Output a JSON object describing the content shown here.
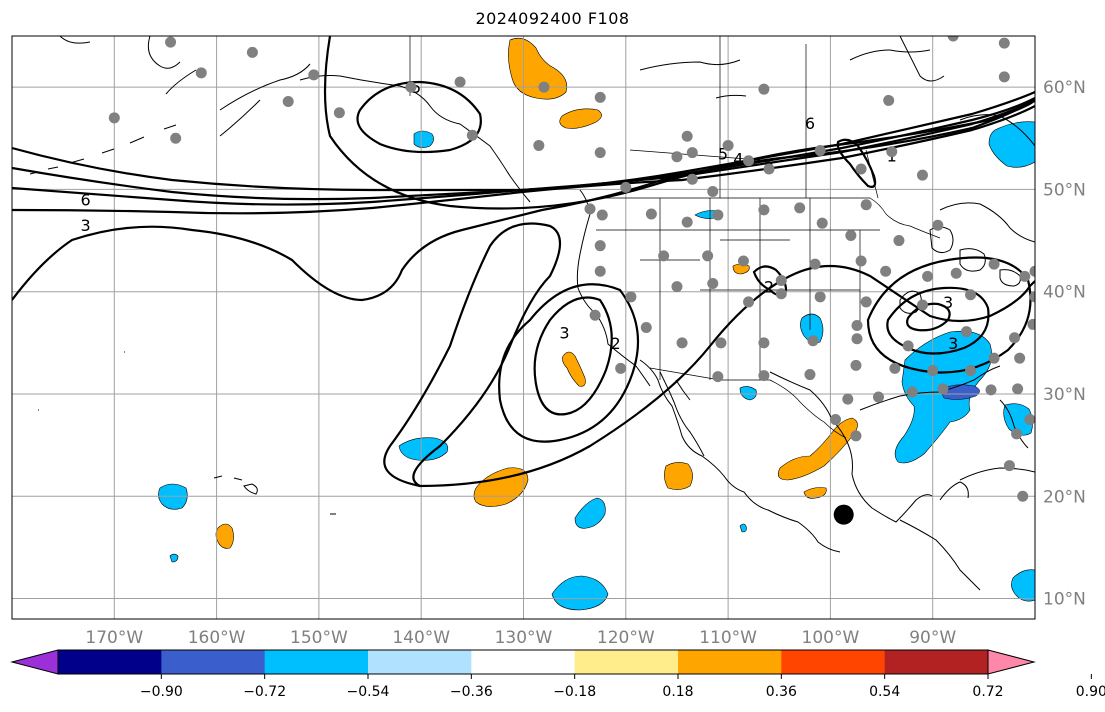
{
  "title": "2024092400 F108",
  "map": {
    "lon_range": [
      -180,
      -80
    ],
    "lat_range": [
      8,
      65
    ],
    "lon_ticks": [
      {
        "value": -170,
        "label": "170°W"
      },
      {
        "value": -160,
        "label": "160°W"
      },
      {
        "value": -150,
        "label": "150°W"
      },
      {
        "value": -140,
        "label": "140°W"
      },
      {
        "value": -130,
        "label": "130°W"
      },
      {
        "value": -120,
        "label": "120°W"
      },
      {
        "value": -110,
        "label": "110°W"
      },
      {
        "value": -100,
        "label": "100°W"
      },
      {
        "value": -90,
        "label": "90°W"
      }
    ],
    "lat_ticks": [
      {
        "value": 10,
        "label": "10°N"
      },
      {
        "value": 20,
        "label": "20°N"
      },
      {
        "value": 30,
        "label": "30°N"
      },
      {
        "value": 40,
        "label": "40°N"
      },
      {
        "value": 50,
        "label": "50°N"
      },
      {
        "value": 60,
        "label": "60°N"
      }
    ],
    "grid": true
  },
  "colorbar": {
    "ticks": [
      "−0.90",
      "−0.72",
      "−0.54",
      "−0.36",
      "−0.18",
      "0.18",
      "0.36",
      "0.54",
      "0.72",
      "0.90"
    ],
    "colors": [
      "#9b30d9",
      "#00008b",
      "#3a5fcd",
      "#00bfff",
      "#b0e2ff",
      "#ffffff",
      "#ffec8b",
      "#ffa500",
      "#ff4500",
      "#b22222",
      "#ff88aa"
    ],
    "extend": "both"
  },
  "contour_labels": [
    {
      "text": "5",
      "lon": -140.5,
      "lat": 60.0
    },
    {
      "text": "6",
      "lon": -102.0,
      "lat": 56.5
    },
    {
      "text": "5",
      "lon": -110.5,
      "lat": 53.5
    },
    {
      "text": "4",
      "lon": -109.0,
      "lat": 53.0
    },
    {
      "text": "2",
      "lon": -106.0,
      "lat": 52.2
    },
    {
      "text": "1",
      "lon": -94.0,
      "lat": 53.3
    },
    {
      "text": "6",
      "lon": -172.8,
      "lat": 49.0
    },
    {
      "text": "3",
      "lon": -172.8,
      "lat": 46.5
    },
    {
      "text": "3",
      "lon": -126.0,
      "lat": 36.0
    },
    {
      "text": "2",
      "lon": -121.0,
      "lat": 35.0
    },
    {
      "text": "2",
      "lon": -106.0,
      "lat": 40.5
    },
    {
      "text": "3",
      "lon": -88.5,
      "lat": 39.0
    },
    {
      "text": "3",
      "lon": -88.0,
      "lat": 35.0
    }
  ],
  "station_points": [
    [
      -164.5,
      64.4
    ],
    [
      -156.5,
      63.4
    ],
    [
      -161.5,
      61.4
    ],
    [
      -150.5,
      61.2
    ],
    [
      -141.0,
      60.0
    ],
    [
      -136.2,
      60.5
    ],
    [
      -128.0,
      60.0
    ],
    [
      -122.5,
      59.0
    ],
    [
      -153.0,
      58.6
    ],
    [
      -170.0,
      57.0
    ],
    [
      -164.0,
      55.0
    ],
    [
      -148.0,
      57.5
    ],
    [
      -135.0,
      55.3
    ],
    [
      -128.5,
      54.3
    ],
    [
      -122.5,
      53.6
    ],
    [
      -114.0,
      55.2
    ],
    [
      -113.5,
      53.6
    ],
    [
      -110.0,
      54.3
    ],
    [
      -108.0,
      52.8
    ],
    [
      -106.0,
      52.0
    ],
    [
      -101.0,
      53.8
    ],
    [
      -97.0,
      52.0
    ],
    [
      -94.0,
      53.7
    ],
    [
      -91.0,
      51.4
    ],
    [
      -106.5,
      59.8
    ],
    [
      -94.3,
      58.7
    ],
    [
      -88.0,
      65.0
    ],
    [
      -83.0,
      64.3
    ],
    [
      -83.0,
      61.0
    ],
    [
      -111.5,
      49.8
    ],
    [
      -113.5,
      51.0
    ],
    [
      -115.0,
      53.2
    ],
    [
      -120.0,
      50.2
    ],
    [
      -123.5,
      48.1
    ],
    [
      -122.3,
      47.5
    ],
    [
      -117.5,
      47.6
    ],
    [
      -114.0,
      46.8
    ],
    [
      -111.0,
      47.5
    ],
    [
      -106.5,
      48.0
    ],
    [
      -103.0,
      48.2
    ],
    [
      -100.8,
      46.7
    ],
    [
      -98.0,
      45.5
    ],
    [
      -96.5,
      48.5
    ],
    [
      -93.3,
      45.0
    ],
    [
      -89.5,
      46.5
    ],
    [
      -122.5,
      44.5
    ],
    [
      -122.5,
      42.0
    ],
    [
      -116.3,
      43.5
    ],
    [
      -112.0,
      43.5
    ],
    [
      -108.5,
      43.0
    ],
    [
      -104.8,
      41.1
    ],
    [
      -101.5,
      42.7
    ],
    [
      -97.0,
      43.0
    ],
    [
      -94.6,
      42.0
    ],
    [
      -90.5,
      41.5
    ],
    [
      -87.7,
      41.8
    ],
    [
      -84.0,
      42.7
    ],
    [
      -81.0,
      41.5
    ],
    [
      -119.5,
      39.5
    ],
    [
      -115.0,
      40.5
    ],
    [
      -111.5,
      40.8
    ],
    [
      -108.0,
      39.0
    ],
    [
      -104.8,
      39.8
    ],
    [
      -101.0,
      39.5
    ],
    [
      -96.5,
      39.0
    ],
    [
      -91.0,
      38.7
    ],
    [
      -86.3,
      39.7
    ],
    [
      -123.0,
      37.7
    ],
    [
      -118.0,
      36.5
    ],
    [
      -114.5,
      35.0
    ],
    [
      -110.7,
      35.0
    ],
    [
      -106.5,
      35.0
    ],
    [
      -101.7,
      35.2
    ],
    [
      -97.4,
      35.4
    ],
    [
      -92.4,
      34.7
    ],
    [
      -86.7,
      36.1
    ],
    [
      -82.0,
      35.5
    ],
    [
      -97.4,
      36.7
    ],
    [
      -120.5,
      32.5
    ],
    [
      -111.0,
      31.7
    ],
    [
      -106.5,
      31.8
    ],
    [
      -102.0,
      31.9
    ],
    [
      -97.5,
      32.8
    ],
    [
      -93.7,
      32.5
    ],
    [
      -90.0,
      32.3
    ],
    [
      -86.3,
      32.3
    ],
    [
      -84.0,
      33.5
    ],
    [
      -81.5,
      33.5
    ],
    [
      -98.3,
      29.5
    ],
    [
      -95.3,
      29.7
    ],
    [
      -92.0,
      30.2
    ],
    [
      -89.0,
      30.5
    ],
    [
      -84.3,
      30.4
    ],
    [
      -81.7,
      30.5
    ],
    [
      -99.5,
      27.5
    ],
    [
      -97.5,
      25.9
    ],
    [
      -81.8,
      26.1
    ],
    [
      -80.5,
      27.5
    ],
    [
      -82.5,
      23.0
    ],
    [
      -81.2,
      20.0
    ],
    [
      -80.2,
      36.8
    ],
    [
      -80.0,
      42.0
    ],
    [
      -80.0,
      39.5
    ]
  ],
  "marker": {
    "lon": -98.7,
    "lat": 18.2
  }
}
